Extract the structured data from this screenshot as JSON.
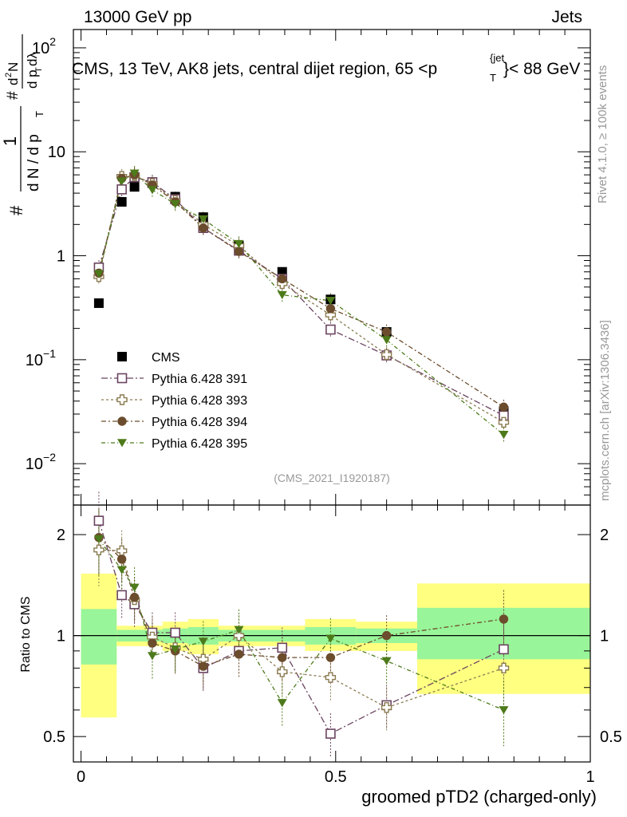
{
  "header": {
    "energy_label": "13000 GeV pp",
    "category_label": "Jets"
  },
  "side_labels": {
    "rivet": "Rivet 4.1.0, ≥ 100k events",
    "source": "mcplots.cern.ch [arXiv:1306.3436]"
  },
  "chart_data": [
    {
      "type": "scatter",
      "title": "CMS, 13 TeV, AK8 jets, central dijet region, 65 <p",
      "title_superscript": "{jet",
      "title_subscript": "T",
      "title_suffix": "}< 88 GeV",
      "analysis_id": "(CMS_2021_I1920187)",
      "ylabel": {
        "prefix": "#",
        "frac1_num": "1",
        "frac1_den": "d N / d p",
        "frac1_den_sub": "T",
        "mid": "#",
        "frac2_num_pre": "d",
        "frac2_num_sup": "2",
        "frac2_num_post": "N",
        "frac2_den": "d p",
        "frac2_den_sub": "T",
        "frac2_den_post": " dλ"
      },
      "y_scale": "log",
      "ylim": [
        0.004,
        150
      ],
      "xlim": [
        -0.015,
        1.0
      ],
      "y_ticks": [
        {
          "value": 0.01,
          "base": "10",
          "exp": "−2"
        },
        {
          "value": 0.1,
          "base": "10",
          "exp": "−1"
        },
        {
          "value": 1,
          "base": "1",
          "exp": ""
        },
        {
          "value": 10,
          "base": "10",
          "exp": ""
        },
        {
          "value": 100,
          "base": "10",
          "exp": "2"
        }
      ],
      "x": [
        0.035,
        0.08,
        0.105,
        0.14,
        0.185,
        0.24,
        0.31,
        0.395,
        0.49,
        0.6,
        0.83
      ],
      "series": [
        {
          "name": "CMS",
          "marker": "square-filled",
          "color": "#000000",
          "values": [
            0.35,
            3.3,
            4.6,
            5.0,
            3.7,
            2.35,
            1.25,
            0.7,
            0.38,
            0.185,
            0.032
          ]
        },
        {
          "name": "Pythia 6.428 391",
          "marker": "square-open",
          "color": "#6b4460",
          "values": [
            0.77,
            4.35,
            5.7,
            5.1,
            3.5,
            1.85,
            1.12,
            0.6,
            0.195,
            0.11,
            0.029
          ]
        },
        {
          "name": "Pythia 6.428 393",
          "marker": "cross-open",
          "color": "#8a7a50",
          "values": [
            0.63,
            5.8,
            5.9,
            4.95,
            3.4,
            2.0,
            1.25,
            0.54,
            0.27,
            0.112,
            0.025
          ]
        },
        {
          "name": "Pythia 6.428 394",
          "marker": "circle-filled",
          "color": "#6b4c2c",
          "values": [
            0.68,
            5.55,
            6.0,
            4.8,
            3.3,
            1.85,
            1.1,
            0.6,
            0.31,
            0.185,
            0.035
          ]
        },
        {
          "name": "Pythia 6.428 395",
          "marker": "triangle-down-filled",
          "color": "#4d7a1a",
          "values": [
            0.67,
            5.2,
            6.2,
            4.3,
            3.15,
            2.25,
            1.3,
            0.42,
            0.37,
            0.155,
            0.019
          ]
        }
      ]
    },
    {
      "type": "scatter",
      "title": "",
      "ylabel": "Ratio to CMS",
      "xlabel": "groomed pTD2 (charged-only)",
      "y_scale": "log",
      "ylim": [
        0.42,
        2.45
      ],
      "xlim": [
        -0.015,
        1.0
      ],
      "y_ticks": [
        0.5,
        1,
        2
      ],
      "y_tick_labels": [
        "0.5",
        "1",
        "2"
      ],
      "x_ticks": [
        0,
        0.5,
        1
      ],
      "x_tick_labels": [
        "0",
        "0.5",
        "1"
      ],
      "bands": [
        {
          "x": [
            0.0,
            0.07
          ],
          "inner": [
            0.82,
            1.2
          ],
          "outer": [
            0.57,
            1.53
          ]
        },
        {
          "x": [
            0.07,
            0.16
          ],
          "inner": [
            0.96,
            1.04
          ],
          "outer": [
            0.93,
            1.07
          ]
        },
        {
          "x": [
            0.16,
            0.21
          ],
          "inner": [
            0.95,
            1.05
          ],
          "outer": [
            0.9,
            1.1
          ]
        },
        {
          "x": [
            0.21,
            0.27
          ],
          "inner": [
            0.94,
            1.06
          ],
          "outer": [
            0.88,
            1.12
          ]
        },
        {
          "x": [
            0.27,
            0.35
          ],
          "inner": [
            0.96,
            1.04
          ],
          "outer": [
            0.93,
            1.07
          ]
        },
        {
          "x": [
            0.35,
            0.44
          ],
          "inner": [
            0.96,
            1.04
          ],
          "outer": [
            0.93,
            1.07
          ]
        },
        {
          "x": [
            0.44,
            0.54
          ],
          "inner": [
            0.94,
            1.06
          ],
          "outer": [
            0.9,
            1.12
          ]
        },
        {
          "x": [
            0.54,
            0.66
          ],
          "inner": [
            0.95,
            1.05
          ],
          "outer": [
            0.9,
            1.1
          ]
        },
        {
          "x": [
            0.66,
            1.0
          ],
          "inner": [
            0.85,
            1.21
          ],
          "outer": [
            0.67,
            1.43
          ]
        }
      ],
      "series": [
        {
          "name": "Pythia 6.428 391",
          "values": [
            2.2,
            1.32,
            1.24,
            1.02,
            1.02,
            0.8,
            0.9,
            0.92,
            0.51,
            0.62,
            0.91
          ]
        },
        {
          "name": "Pythia 6.428 393",
          "values": [
            1.8,
            1.79,
            1.28,
            0.99,
            0.92,
            0.85,
            1.0,
            0.78,
            0.75,
            0.61,
            0.8
          ]
        },
        {
          "name": "Pythia 6.428 394",
          "values": [
            1.96,
            1.69,
            1.3,
            0.95,
            0.9,
            0.81,
            0.88,
            0.86,
            0.86,
            1.0,
            1.12
          ]
        },
        {
          "name": "Pythia 6.428 395",
          "values": [
            1.94,
            1.57,
            1.39,
            0.87,
            0.91,
            0.96,
            1.04,
            0.63,
            0.98,
            0.84,
            0.6
          ]
        }
      ]
    }
  ]
}
